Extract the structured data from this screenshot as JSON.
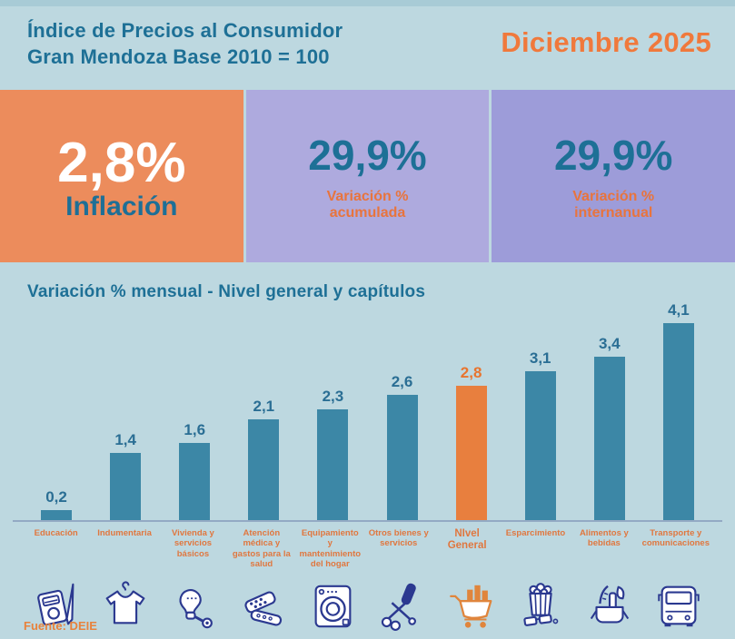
{
  "header": {
    "title_line1": "Índice de Precios al Consumidor",
    "title_line2": "Gran Mendoza Base 2010 = 100",
    "period": "Diciembre 2025"
  },
  "stats": {
    "inflation": {
      "value": "2,8%",
      "label": "Inflación"
    },
    "accumulated": {
      "value": "29,9%",
      "label": "Variación %\nacumulada"
    },
    "interannual": {
      "value": "29,9%",
      "label": "Variación %\ninternanual"
    }
  },
  "chart_data": {
    "type": "bar",
    "title": "Variación % mensual - Nivel general y capítulos",
    "categories": [
      "Educación",
      "Indumentaria",
      "Vivienda y servicios básicos",
      "Atención médica y gastos para la salud",
      "Equipamiento y mantenimiento del hogar",
      "Otros bienes y servicios",
      "NIvel General",
      "Esparcimiento",
      "Alimentos y bebidas",
      "Transporte y comunicaciones"
    ],
    "values": [
      0.2,
      1.4,
      1.6,
      2.1,
      2.3,
      2.6,
      2.8,
      3.1,
      3.4,
      4.1
    ],
    "value_labels": [
      "0,2",
      "1,4",
      "1,6",
      "2,1",
      "2,3",
      "2,6",
      "2,8",
      "3,1",
      "3,4",
      "4,1"
    ],
    "highlight_index": 6,
    "icons": [
      "notebook-pencil-icon",
      "tshirt-icon",
      "lightbulb-tool-icon",
      "pills-icon",
      "washing-machine-icon",
      "scissors-shampoo-icon",
      "shopping-cart-icon",
      "popcorn-glasses-icon",
      "groceries-icon",
      "bus-icon"
    ],
    "ylim": [
      0,
      4.5
    ],
    "legend": "none",
    "grid": false,
    "bar_color": "#3c87a6",
    "highlight_color": "#e87f3e"
  },
  "source": "Fuente: DEIE",
  "colors": {
    "background": "#bdd8e0",
    "title_teal": "#1e7096",
    "accent_orange": "#f0793c",
    "box_orange": "#ec8c5c",
    "box_purple_light": "#aeaade",
    "box_purple_dark": "#9d9cd9",
    "icon_navy": "#2b3990"
  }
}
